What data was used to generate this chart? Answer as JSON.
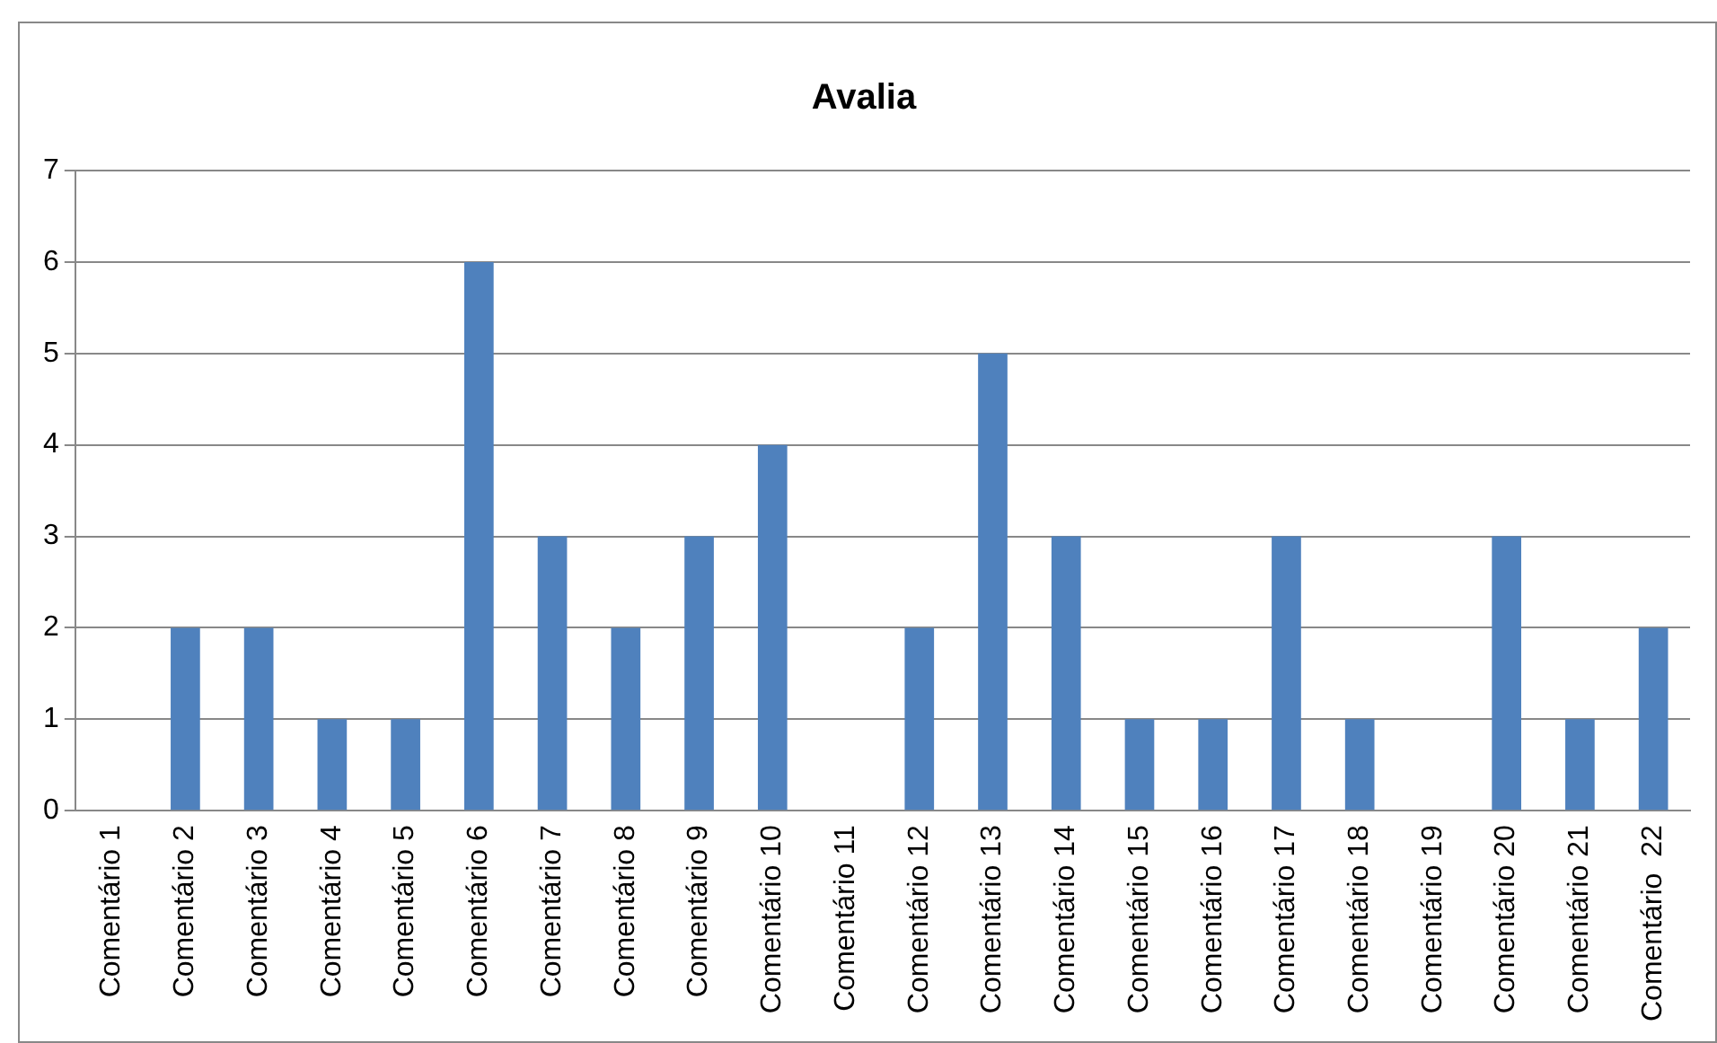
{
  "chart_data": {
    "type": "bar",
    "title": "Avalia",
    "categories": [
      "Comentário 1",
      "Comentário 2",
      "Comentário 3",
      "Comentário 4",
      "Comentário 5",
      "Comentário 6",
      "Comentário 7",
      "Comentário 8",
      "Comentário 9",
      "Comentário 10",
      "Comentário 11",
      "Comentário 12",
      "Comentário 13",
      "Comentário 14",
      "Comentário 15",
      "Comentário 16",
      "Comentário 17",
      "Comentário 18",
      "Comentário 19",
      "Comentário 20",
      "Comentário 21",
      "Comentário  22"
    ],
    "values": [
      0,
      2,
      2,
      1,
      1,
      6,
      3,
      2,
      3,
      4,
      0,
      2,
      5,
      3,
      1,
      1,
      3,
      1,
      0,
      3,
      1,
      2
    ],
    "color": "#4f81bd",
    "ylim": [
      0,
      7
    ],
    "yticks": [
      0,
      1,
      2,
      3,
      4,
      5,
      6,
      7
    ],
    "grid": "y"
  }
}
